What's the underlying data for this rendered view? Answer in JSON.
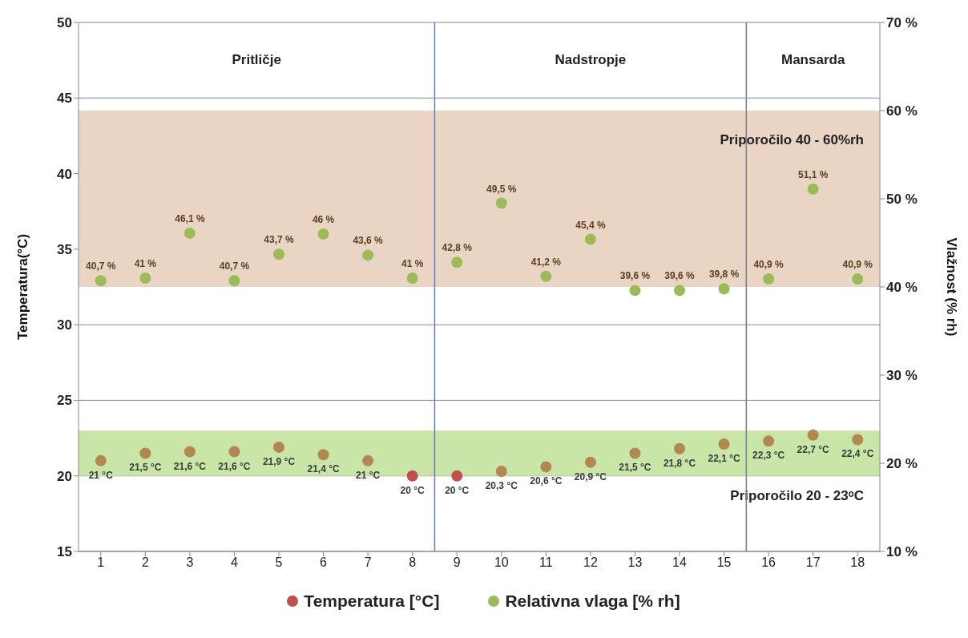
{
  "chart_data": {
    "type": "scatter",
    "ylabel": "Temperatura(°C)",
    "y2label": "Vlažnost (% rh)",
    "x": [
      1,
      2,
      3,
      4,
      5,
      6,
      7,
      8,
      9,
      10,
      11,
      12,
      13,
      14,
      15,
      16,
      17,
      18
    ],
    "xlim": [
      0.5,
      18.5
    ],
    "xticks": [
      1,
      2,
      3,
      4,
      5,
      6,
      7,
      8,
      9,
      10,
      11,
      12,
      13,
      14,
      15,
      16,
      17,
      18
    ],
    "ylim": [
      15,
      50
    ],
    "yticks": [
      15,
      20,
      25,
      30,
      35,
      40,
      45,
      50
    ],
    "y2lim": [
      10,
      70
    ],
    "y2ticks": [
      {
        "value": 10,
        "label": "10 %"
      },
      {
        "value": 20,
        "label": "20 %"
      },
      {
        "value": 30,
        "label": "30 %"
      },
      {
        "value": 40,
        "label": "40 %"
      },
      {
        "value": 50,
        "label": "50 %"
      },
      {
        "value": 60,
        "label": "60 %"
      },
      {
        "value": 70,
        "label": "70 %"
      }
    ],
    "grid": "y",
    "legend": "bottom",
    "marker": "circle",
    "series": [
      {
        "name": "Temperatura  [°C]",
        "color": "#c0504d",
        "colors": [
          "#b08850",
          "#b08850",
          "#b08850",
          "#b08850",
          "#b08850",
          "#b08850",
          "#b08850",
          "#c0504d",
          "#c0504d",
          "#b08850",
          "#b08850",
          "#b08850",
          "#b08850",
          "#b08850",
          "#b08850",
          "#b08850",
          "#b08850",
          "#b08850"
        ],
        "values": [
          21,
          21.5,
          21.6,
          21.6,
          21.9,
          21.4,
          21,
          20,
          20,
          20.3,
          20.6,
          20.9,
          21.5,
          21.8,
          22.1,
          22.3,
          22.7,
          22.4
        ],
        "value_labels": [
          "21 °C",
          "21,5 °C",
          "21,6 °C",
          "21,6 °C",
          "21,9 °C",
          "21,4 °C",
          "21 °C",
          "20 °C",
          "20 °C",
          "20,3 °C",
          "20,6 °C",
          "20,9 °C",
          "21,5 °C",
          "21,8 °C",
          "22,1 °C",
          "22,3 °C",
          "22,7 °C",
          "22,4 °C"
        ]
      },
      {
        "name": "Relativna vlaga  [% rh]",
        "color": "#9bbb59",
        "axis": "y2",
        "values": [
          40.7,
          41,
          46.1,
          40.7,
          43.7,
          46,
          43.6,
          41,
          42.8,
          49.5,
          41.2,
          45.4,
          39.6,
          39.6,
          39.8,
          40.9,
          51.1,
          40.9
        ],
        "value_labels": [
          "40,7 %",
          "41 %",
          "46,1 %",
          "40,7 %",
          "43,7 %",
          "46 %",
          "43,6 %",
          "41 %",
          "42,8 %",
          "49,5 %",
          "41,2 %",
          "45,4 %",
          "39,6 %",
          "39,6 %",
          "39,8 %",
          "40,9 %",
          "51,1 %",
          "40,9 %"
        ]
      }
    ],
    "bands": [
      {
        "axis": "y2",
        "from": 40,
        "to": 60,
        "label": "Priporočilo 40 - 60%rh",
        "color": "#ead5c5"
      },
      {
        "axis": "y",
        "from": 20,
        "to": 23,
        "label": "Priporočilo 20 - 23ᵒC",
        "color": "#c9e6a8"
      }
    ],
    "ref_lines": [
      {
        "axis": "x",
        "value": 8.5,
        "color": "#6a7fa8"
      },
      {
        "axis": "x",
        "value": 15.5,
        "color": "#6a7fa8"
      }
    ],
    "annotations": [
      "Pritličje",
      "Nadstropje",
      "Mansarda"
    ]
  }
}
